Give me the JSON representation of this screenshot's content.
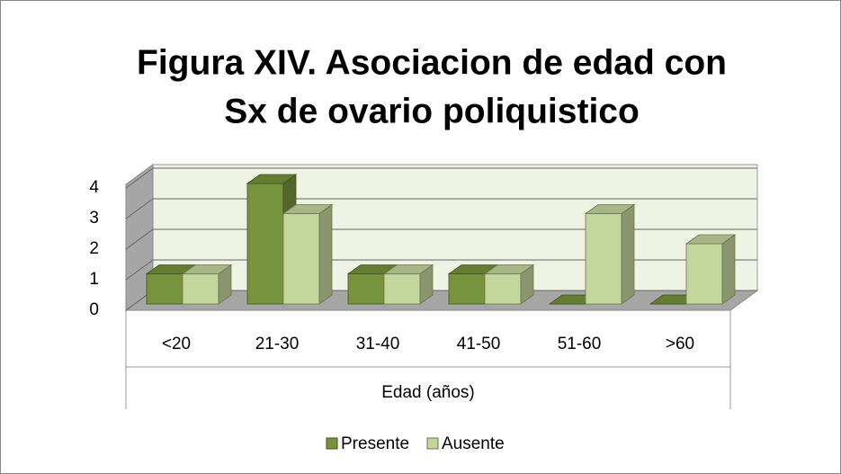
{
  "chart_data": {
    "type": "bar3d",
    "title": [
      "Figura XIV. Asociacion de edad con",
      "Sx de ovario poliquistico"
    ],
    "xlabel": "Edad (años)",
    "categories": [
      "<20",
      "21-30",
      "31-40",
      "41-50",
      "51-60",
      ">60"
    ],
    "series": [
      {
        "name": "Presente",
        "color": "#77933c",
        "values": [
          1,
          4,
          1,
          1,
          0,
          0
        ]
      },
      {
        "name": "Ausente",
        "color": "#c3d69b",
        "values": [
          1,
          3,
          1,
          1,
          3,
          2
        ]
      }
    ],
    "ylim": [
      0,
      4
    ],
    "yticks": [
      0,
      1,
      2,
      3,
      4
    ],
    "grid": true,
    "legend": "bottom"
  }
}
